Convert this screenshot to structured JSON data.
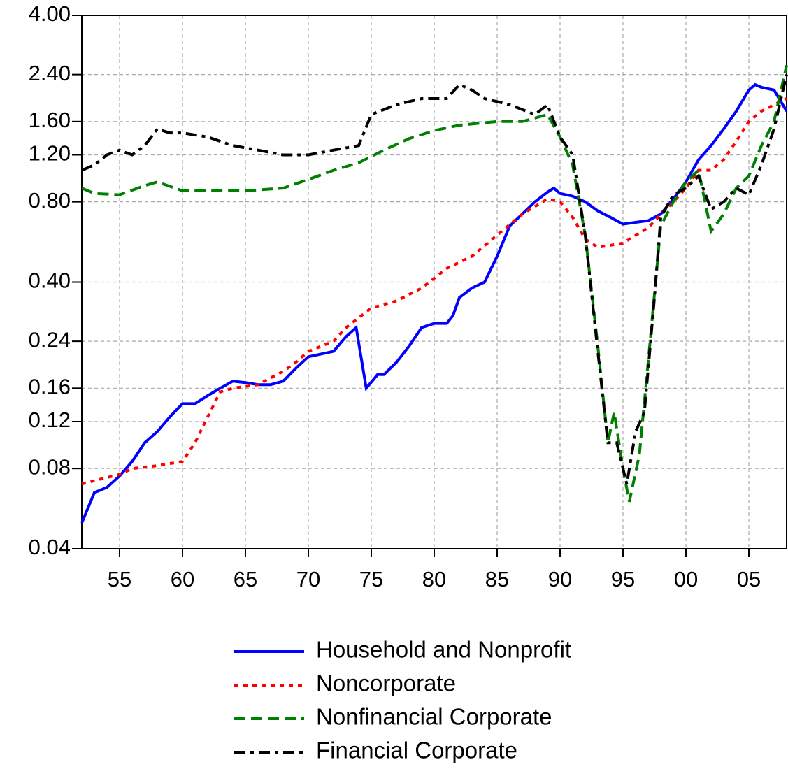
{
  "chart_data": {
    "type": "line",
    "log_y": true,
    "grid": true,
    "xlim": [
      1952,
      2008
    ],
    "ylim": [
      0.04,
      4
    ],
    "xticks": [
      {
        "value": 1955,
        "label": "55"
      },
      {
        "value": 1960,
        "label": "60"
      },
      {
        "value": 1965,
        "label": "65"
      },
      {
        "value": 1970,
        "label": "70"
      },
      {
        "value": 1975,
        "label": "75"
      },
      {
        "value": 1980,
        "label": "80"
      },
      {
        "value": 1985,
        "label": "85"
      },
      {
        "value": 1990,
        "label": "90"
      },
      {
        "value": 1995,
        "label": "95"
      },
      {
        "value": 2000,
        "label": "00"
      },
      {
        "value": 2005,
        "label": "05"
      }
    ],
    "yticks": [
      0.04,
      0.08,
      0.12,
      0.16,
      0.24,
      {
        "value": 0.4,
        "label": "0.40"
      },
      {
        "value": 0.8,
        "label": "0.80"
      },
      {
        "value": 1.2,
        "label": "1.20"
      },
      {
        "value": 1.6,
        "label": "1.60"
      },
      {
        "value": 2.4,
        "label": "2.40"
      },
      {
        "value": 4,
        "label": "4.00"
      }
    ],
    "legend": "bottom",
    "series": [
      {
        "name": "Household and Nonprofit",
        "color": "#0000ff",
        "dash": "solid",
        "x": [
          1952,
          1953,
          1954,
          1955,
          1956,
          1957,
          1958,
          1959,
          1960,
          1961,
          1962,
          1963,
          1964,
          1965,
          1966,
          1967,
          1968,
          1969,
          1970,
          1971,
          1972,
          1973,
          1973.8,
          1974.6,
          1975.5,
          1976,
          1977,
          1978,
          1979,
          1980,
          1981,
          1981.5,
          1982,
          1983,
          1984,
          1985,
          1986,
          1987,
          1988,
          1989,
          1989.5,
          1990,
          1991,
          1992,
          1993,
          1994,
          1995,
          1996,
          1997,
          1998,
          1999,
          2000,
          2001,
          2002,
          2003,
          2004,
          2005,
          2005.5,
          2006,
          2007,
          2008
        ],
        "values": [
          0.05,
          0.065,
          0.068,
          0.075,
          0.085,
          0.1,
          0.11,
          0.125,
          0.14,
          0.14,
          0.15,
          0.16,
          0.17,
          0.168,
          0.165,
          0.165,
          0.17,
          0.19,
          0.21,
          0.215,
          0.22,
          0.25,
          0.27,
          0.16,
          0.18,
          0.18,
          0.2,
          0.23,
          0.27,
          0.28,
          0.28,
          0.3,
          0.35,
          0.38,
          0.4,
          0.5,
          0.65,
          0.72,
          0.8,
          0.87,
          0.9,
          0.86,
          0.84,
          0.8,
          0.74,
          0.7,
          0.66,
          0.67,
          0.68,
          0.72,
          0.82,
          0.95,
          1.15,
          1.3,
          1.5,
          1.75,
          2.1,
          2.2,
          2.15,
          2.1,
          1.75
        ]
      },
      {
        "name": "Noncorporate",
        "color": "#ff0000",
        "dash": "dotted",
        "x": [
          1952,
          1953,
          1954,
          1955,
          1956,
          1958,
          1960,
          1961,
          1962,
          1963,
          1964,
          1966,
          1967,
          1968,
          1969,
          1970,
          1972,
          1973,
          1975,
          1977,
          1979,
          1981,
          1983,
          1985,
          1987,
          1989,
          1990,
          1991,
          1992,
          1993,
          1995,
          1997,
          1999,
          2000,
          2001,
          2002,
          2003,
          2004,
          2005,
          2006,
          2007,
          2008
        ],
        "values": [
          0.07,
          0.072,
          0.074,
          0.076,
          0.08,
          0.082,
          0.085,
          0.1,
          0.125,
          0.155,
          0.16,
          0.165,
          0.175,
          0.185,
          0.2,
          0.22,
          0.24,
          0.27,
          0.32,
          0.34,
          0.38,
          0.45,
          0.5,
          0.6,
          0.72,
          0.82,
          0.8,
          0.7,
          0.58,
          0.54,
          0.56,
          0.64,
          0.8,
          0.9,
          1.05,
          1.05,
          1.15,
          1.35,
          1.6,
          1.75,
          1.85,
          1.95
        ]
      },
      {
        "name": "Nonfinancial Corporate",
        "color": "#008000",
        "dash": "dashed",
        "x": [
          1952,
          1953,
          1955,
          1957,
          1958,
          1960,
          1962,
          1965,
          1968,
          1970,
          1972,
          1974,
          1976,
          1978,
          1980,
          1982,
          1985,
          1987,
          1989,
          1990,
          1991,
          1992,
          1993,
          1993.8,
          1994.3,
          1995,
          1995.5,
          1996.3,
          1997,
          1998,
          1999,
          2000,
          2001,
          2002,
          2003,
          2004,
          2005,
          2006,
          2007,
          2008
        ],
        "values": [
          0.9,
          0.86,
          0.85,
          0.92,
          0.95,
          0.88,
          0.88,
          0.88,
          0.9,
          0.97,
          1.05,
          1.12,
          1.25,
          1.38,
          1.48,
          1.55,
          1.6,
          1.6,
          1.7,
          1.4,
          1.1,
          0.6,
          0.23,
          0.1,
          0.13,
          0.08,
          0.06,
          0.09,
          0.2,
          0.65,
          0.8,
          0.95,
          1.05,
          0.62,
          0.72,
          0.9,
          1.0,
          1.3,
          1.6,
          2.6
        ]
      },
      {
        "name": "Financial Corporate",
        "color": "#000000",
        "dash": "dashdot",
        "x": [
          1952,
          1953,
          1954,
          1955,
          1956,
          1957,
          1958,
          1959,
          1960,
          1962,
          1964,
          1966,
          1968,
          1970,
          1972,
          1974,
          1975,
          1977,
          1979,
          1981,
          1982,
          1983,
          1984,
          1986,
          1988,
          1989,
          1990,
          1991,
          1992,
          1993,
          1993.8,
          1994.5,
          1995.3,
          1996,
          1996.7,
          1997.5,
          1998,
          1999,
          2000,
          2001,
          2002,
          2003,
          2004,
          2005,
          2006,
          2007,
          2008
        ],
        "values": [
          1.05,
          1.1,
          1.2,
          1.25,
          1.2,
          1.3,
          1.5,
          1.45,
          1.45,
          1.4,
          1.3,
          1.25,
          1.2,
          1.2,
          1.25,
          1.3,
          1.7,
          1.85,
          1.95,
          1.95,
          2.2,
          2.1,
          1.95,
          1.85,
          1.7,
          1.85,
          1.4,
          1.2,
          0.6,
          0.22,
          0.1,
          0.1,
          0.07,
          0.11,
          0.13,
          0.35,
          0.7,
          0.85,
          0.9,
          1.0,
          0.75,
          0.8,
          0.9,
          0.85,
          1.1,
          1.5,
          2.4
        ]
      }
    ]
  }
}
